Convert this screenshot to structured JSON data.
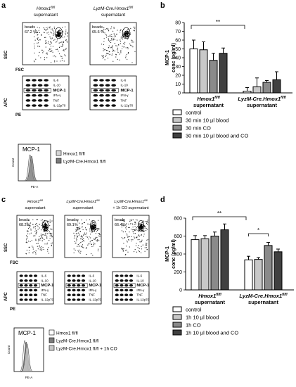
{
  "panels": {
    "a": {
      "label": "a",
      "columns": [
        {
          "title": "Hmox1",
          "sup": "fl/fl",
          "sub": "supernatant",
          "gate_label": "beads",
          "gate_pct": "67.2 %"
        },
        {
          "title": "LyzM-Cre.Hmox1",
          "sup": "fl/fl",
          "sub": "supernatant",
          "gate_label": "beads",
          "gate_pct": "65.6 %"
        }
      ],
      "scatter_axes": {
        "y": "SSC",
        "x": "FSC"
      },
      "bead_axes": {
        "y": "APC",
        "x": "PE"
      },
      "bead_labels": [
        "IL-6",
        "IL-10",
        "MCP-1",
        "IFN-γ",
        "TNF",
        "IL-12p70"
      ],
      "histogram": {
        "title": "MCP-1",
        "xlabel": "PE-A",
        "ylabel": "Count",
        "legend": [
          {
            "label": "Hmox1 fl/fl",
            "color": "#d6d6d6"
          },
          {
            "label": "LyzM-Cre.Hmox1 fl/fl",
            "color": "#7a7a7a"
          }
        ]
      }
    },
    "b": {
      "label": "b"
    },
    "c": {
      "label": "c",
      "columns": [
        {
          "title": "Hmox1",
          "sup": "fl/fl",
          "sub": "supernatant",
          "gate_label": "beads",
          "gate_pct": "68.2%"
        },
        {
          "title": "LyzM-Cre.Hmox1",
          "sup": "fl/fl",
          "sub": "supernatant",
          "gate_label": "beads",
          "gate_pct": "69.1%"
        },
        {
          "title": "LyzM-Cre.Hmox1",
          "sup": "fl/fl",
          "sub": "+ 1h CO supernatant",
          "gate_label": "beads",
          "gate_pct": "66.4%"
        }
      ],
      "scatter_axes": {
        "y": "SSC",
        "x": "FSC"
      },
      "bead_axes": {
        "y": "APC",
        "x": "PE"
      },
      "bead_labels": [
        "IL-6",
        "IL-10",
        "MCP-1",
        "IFN-γ",
        "TNF",
        "IL-12p70"
      ],
      "histogram": {
        "title": "MCP-1",
        "xlabel": "PE-A",
        "ylabel": "Count",
        "legend": [
          {
            "label": "Hmox1 fl/fl",
            "color": "#ffffff"
          },
          {
            "label": "LyzM-Cre.Hmox1 fl/fl",
            "color": "#7a7a7a"
          },
          {
            "label": "LyzM-Cre.Hmox1 fl/fl + 1h CO",
            "color": "#c8c8c8"
          }
        ]
      }
    },
    "d": {
      "label": "d"
    }
  },
  "chart_data": [
    {
      "panel": "b",
      "type": "bar",
      "ylabel": "MCP-1\nconc (pg/ml)",
      "ylim": [
        0,
        80
      ],
      "yticks": [
        0,
        10,
        20,
        30,
        40,
        50,
        60,
        70,
        80
      ],
      "groups": [
        {
          "name": "Hmox1",
          "sup": "fl/fl",
          "sub": "supernatant"
        },
        {
          "name": "LyzM-Cre.Hmox1",
          "sup": "fl/fl",
          "sub": "supernatant"
        }
      ],
      "series": [
        {
          "name": "control",
          "color": "#ffffff",
          "values": [
            50,
            2
          ],
          "errors": [
            10,
            4
          ]
        },
        {
          "name": "30 min 10 µl blood",
          "color": "#c8c8c8",
          "values": [
            49,
            7
          ],
          "errors": [
            9,
            10
          ]
        },
        {
          "name": "30 min CO",
          "color": "#8a8a8a",
          "values": [
            37,
            12
          ],
          "errors": [
            8,
            2
          ]
        },
        {
          "name": "30 min 10 µl blood and CO",
          "color": "#404040",
          "values": [
            45,
            15
          ],
          "errors": [
            6,
            9
          ]
        }
      ],
      "significance": [
        {
          "text": "**",
          "from_group": 0,
          "to_group": 1
        }
      ]
    },
    {
      "panel": "d",
      "type": "bar",
      "ylabel": "MCP-1\nconc (pg/ml)",
      "ylim": [
        0,
        800
      ],
      "yticks": [
        0,
        200,
        400,
        600,
        800
      ],
      "groups": [
        {
          "name": "Hmox1",
          "sup": "fl/fl",
          "sub": "supernatant"
        },
        {
          "name": "LyzM-Cre.Hmox1",
          "sup": "fl/fl",
          "sub": "supernatant"
        }
      ],
      "series": [
        {
          "name": "control",
          "color": "#ffffff",
          "values": [
            560,
            335
          ],
          "errors": [
            45,
            40
          ]
        },
        {
          "name": "1h 10 µl blood",
          "color": "#c8c8c8",
          "values": [
            570,
            340
          ],
          "errors": [
            35,
            20
          ]
        },
        {
          "name": "1h CO",
          "color": "#8a8a8a",
          "values": [
            600,
            495
          ],
          "errors": [
            45,
            35
          ]
        },
        {
          "name": "1h 10 µl blood and CO",
          "color": "#404040",
          "values": [
            670,
            425
          ],
          "errors": [
            65,
            30
          ]
        }
      ],
      "significance": [
        {
          "text": "**",
          "from_group": 0,
          "to_group": 1
        },
        {
          "text": "*",
          "group": 1,
          "from_series": 0,
          "to_series": 2
        }
      ]
    }
  ]
}
